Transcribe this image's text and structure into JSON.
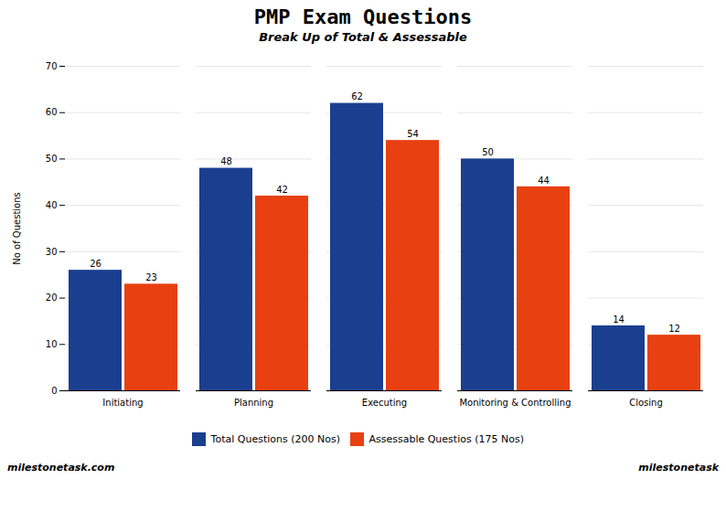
{
  "chart_data": {
    "type": "bar",
    "title": "PMP Exam Questions",
    "subtitle": "Break Up of Total & Assessable",
    "categories": [
      "Initiating",
      "Planning",
      "Executing",
      "Monitoring & Controlling",
      "Closing"
    ],
    "series": [
      {
        "name": "Total Questions (200 Nos)",
        "color": "#1a3f8f",
        "values": [
          26,
          48,
          62,
          50,
          14
        ]
      },
      {
        "name": "Assessable Questios (175 Nos)",
        "color": "#e84010",
        "values": [
          23,
          42,
          54,
          44,
          12
        ]
      }
    ],
    "ylabel": "No of Questions",
    "ylim": [
      0,
      70
    ],
    "yticks": [
      0,
      10,
      20,
      30,
      40,
      50,
      60,
      70
    ],
    "grid": true,
    "data_labels": true,
    "legend": "bottom",
    "annotations": [
      "milestonetask.com",
      "milestonetask"
    ]
  }
}
